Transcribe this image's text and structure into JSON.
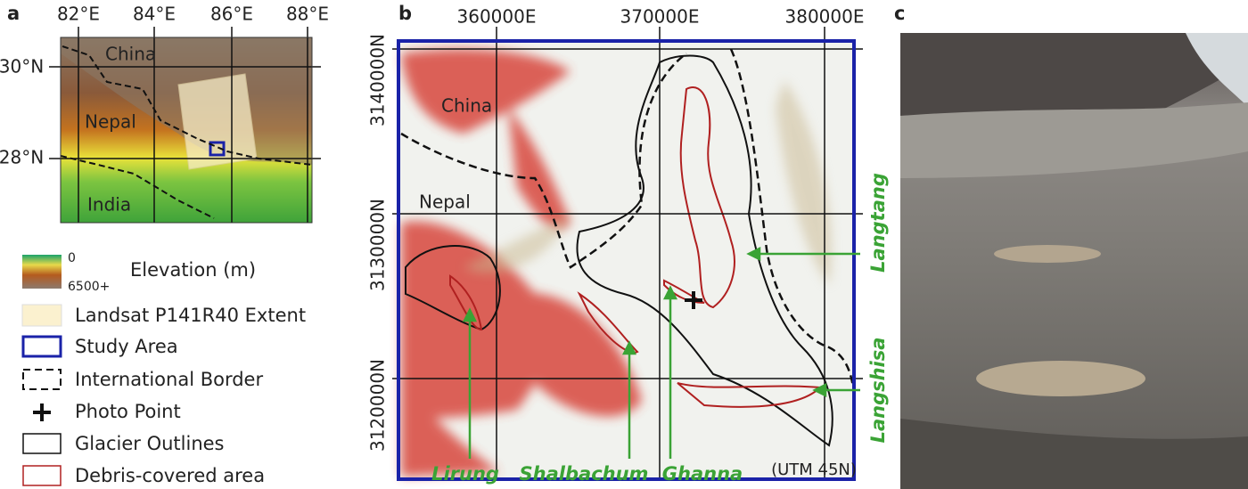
{
  "panel_a": {
    "label": "a",
    "lon_ticks": [
      "82°E",
      "84°E",
      "86°E",
      "88°E"
    ],
    "lat_ticks": [
      "30°N",
      "28°N"
    ],
    "regions": [
      "China",
      "Nepal",
      "India"
    ],
    "legend": {
      "elevation_min": "0",
      "elevation_max": "6500+",
      "elevation_title": "Elevation (m)",
      "items": [
        "Landsat P141R40 Extent",
        "Study Area",
        "International Border",
        "Photo Point",
        "Glacier Outlines",
        "Debris-covered area"
      ]
    }
  },
  "panel_b": {
    "label": "b",
    "easting_ticks": [
      "360000E",
      "370000E",
      "380000E"
    ],
    "northing_ticks": [
      "3140000N",
      "3130000N",
      "3120000N"
    ],
    "regions": [
      "China",
      "Nepal"
    ],
    "glaciers": [
      "Lirung",
      "Shalbachum",
      "Ghanna",
      "Langtang",
      "Langshisa"
    ],
    "projection": "(UTM 45N)"
  },
  "panel_c": {
    "label": "c"
  }
}
